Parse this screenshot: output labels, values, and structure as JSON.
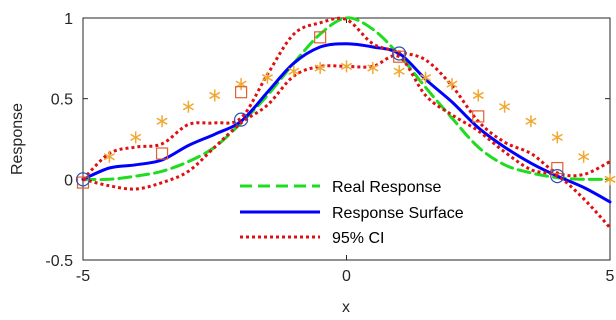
{
  "chart_data": {
    "type": "line",
    "title": "",
    "xlabel": "x",
    "ylabel": "Response",
    "xlim": [
      -5,
      5
    ],
    "ylim": [
      -0.5,
      1
    ],
    "x_ticks": [
      -5,
      0,
      5
    ],
    "y_ticks": [
      -0.5,
      0,
      0.5,
      1
    ],
    "x_tick_labels": [
      "-5",
      "0",
      "5"
    ],
    "y_tick_labels": [
      "-0.5",
      "0",
      "0.5",
      "1"
    ],
    "grid": false,
    "legend_position": "bottom-center",
    "legend": [
      {
        "label": "Real Response",
        "series": "real"
      },
      {
        "label": "Response Surface",
        "series": "surface"
      },
      {
        "label": "95% CI",
        "series": "ci"
      }
    ],
    "series": [
      {
        "key": "real",
        "style": "dashed",
        "color": "#1fdc1f",
        "x": [
          -5,
          -4.5,
          -4,
          -3.5,
          -3,
          -2.5,
          -2,
          -1.5,
          -1,
          -0.5,
          0,
          0.5,
          1,
          1.5,
          2,
          2.5,
          3,
          3.5,
          4,
          4.5,
          5
        ],
        "y": [
          0.0,
          0.0,
          0.02,
          0.05,
          0.11,
          0.2,
          0.35,
          0.52,
          0.72,
          0.9,
          1.0,
          0.93,
          0.77,
          0.57,
          0.38,
          0.2,
          0.09,
          0.04,
          0.01,
          0.0,
          0.0
        ]
      },
      {
        "key": "surface",
        "style": "solid",
        "color": "#0000ff",
        "x": [
          -5,
          -4.5,
          -4,
          -3.5,
          -3,
          -2.5,
          -2,
          -1.5,
          -1,
          -0.5,
          0,
          0.5,
          1,
          1.5,
          2,
          2.5,
          3,
          3.5,
          4,
          4.5,
          5
        ],
        "y": [
          0.0,
          0.07,
          0.09,
          0.12,
          0.21,
          0.28,
          0.36,
          0.54,
          0.72,
          0.82,
          0.84,
          0.82,
          0.78,
          0.62,
          0.48,
          0.32,
          0.2,
          0.1,
          0.02,
          -0.05,
          -0.14
        ]
      },
      {
        "key": "ci_upper",
        "style": "dotted",
        "color": "#e01010",
        "x": [
          -5,
          -4.5,
          -4,
          -3.5,
          -3,
          -2.5,
          -2,
          -1.5,
          -1,
          -0.5,
          0,
          0.5,
          1,
          1.5,
          2,
          2.5,
          3,
          3.5,
          4,
          4.5,
          5
        ],
        "y": [
          0.0,
          0.16,
          0.2,
          0.22,
          0.34,
          0.35,
          0.38,
          0.65,
          0.9,
          0.97,
          0.99,
          0.84,
          0.79,
          0.74,
          0.58,
          0.36,
          0.23,
          0.16,
          0.04,
          0.03,
          0.11
        ]
      },
      {
        "key": "ci_lower",
        "style": "dotted",
        "color": "#e01010",
        "x": [
          -5,
          -4.5,
          -4,
          -3.5,
          -3,
          -2.5,
          -2,
          -1.5,
          -1,
          -0.5,
          0,
          0.5,
          1,
          1.5,
          2,
          2.5,
          3,
          3.5,
          4,
          4.5,
          5
        ],
        "y": [
          0.0,
          -0.04,
          -0.06,
          -0.02,
          0.05,
          0.2,
          0.35,
          0.46,
          0.64,
          0.7,
          0.7,
          0.7,
          0.76,
          0.52,
          0.4,
          0.3,
          0.17,
          0.06,
          0.02,
          -0.12,
          -0.3
        ]
      },
      {
        "key": "stars",
        "style": "marker-star",
        "color": "#f0a830",
        "x": [
          -4.5,
          -4,
          -3.5,
          -3,
          -2.5,
          -2,
          -1.5,
          -1,
          -0.5,
          0,
          0.5,
          1,
          1.5,
          2,
          2.5,
          3,
          3.5,
          4,
          4.5,
          5
        ],
        "y": [
          0.14,
          0.26,
          0.36,
          0.45,
          0.52,
          0.59,
          0.63,
          0.67,
          0.69,
          0.7,
          0.69,
          0.67,
          0.63,
          0.59,
          0.52,
          0.45,
          0.36,
          0.26,
          0.14,
          0.0
        ]
      },
      {
        "key": "squares",
        "style": "marker-square",
        "color": "#e06030",
        "x": [
          -5,
          -3.5,
          -2,
          -0.5,
          1,
          2.5,
          4
        ],
        "y": [
          -0.02,
          0.16,
          0.54,
          0.88,
          0.76,
          0.39,
          0.07
        ]
      },
      {
        "key": "circles",
        "style": "marker-circle",
        "color": "#3050b0",
        "x": [
          -5,
          -2,
          1,
          4
        ],
        "y": [
          0.0,
          0.37,
          0.78,
          0.02
        ]
      }
    ]
  }
}
